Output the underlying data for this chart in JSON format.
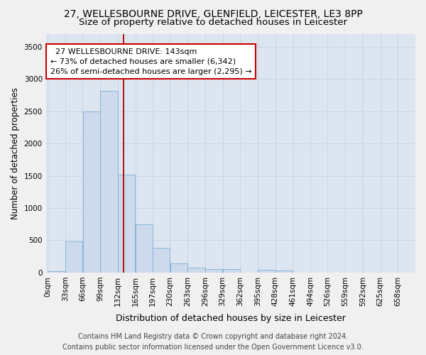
{
  "title_line1": "27, WELLESBOURNE DRIVE, GLENFIELD, LEICESTER, LE3 8PP",
  "title_line2": "Size of property relative to detached houses in Leicester",
  "xlabel": "Distribution of detached houses by size in Leicester",
  "ylabel": "Number of detached properties",
  "bin_labels": [
    "0sqm",
    "33sqm",
    "66sqm",
    "99sqm",
    "132sqm",
    "165sqm",
    "197sqm",
    "230sqm",
    "263sqm",
    "296sqm",
    "329sqm",
    "362sqm",
    "395sqm",
    "428sqm",
    "461sqm",
    "494sqm",
    "526sqm",
    "559sqm",
    "592sqm",
    "625sqm",
    "658sqm"
  ],
  "bin_left_edges": [
    0,
    33,
    66,
    99,
    132,
    165,
    197,
    230,
    263,
    296,
    329,
    362,
    395,
    428,
    461,
    494,
    526,
    559,
    592,
    625,
    658
  ],
  "bin_width": 33,
  "bar_values": [
    20,
    480,
    2500,
    2820,
    1520,
    750,
    380,
    145,
    75,
    55,
    50,
    0,
    40,
    35,
    0,
    0,
    0,
    0,
    0,
    0
  ],
  "bar_color": "#ccdaec",
  "bar_edge_color": "#7aafd4",
  "property_size": 143,
  "red_line_color": "#aa0000",
  "annotation_line1": "  27 WELLESBOURNE DRIVE: 143sqm",
  "annotation_line2": "← 73% of detached houses are smaller (6,342)",
  "annotation_line3": "26% of semi-detached houses are larger (2,295) →",
  "annotation_box_facecolor": "#ffffff",
  "annotation_box_edgecolor": "#cc0000",
  "ylim_max": 3700,
  "yticks": [
    0,
    500,
    1000,
    1500,
    2000,
    2500,
    3000,
    3500
  ],
  "grid_color": "#c8d4e8",
  "plot_bg_color": "#dde6f0",
  "fig_bg_color": "#f0f0f0",
  "title1_fontsize": 10,
  "title2_fontsize": 9.5,
  "xlabel_fontsize": 9,
  "ylabel_fontsize": 8.5,
  "tick_fontsize": 7.5,
  "annot_fontsize": 8,
  "footer_fontsize": 7,
  "footer_line1": "Contains HM Land Registry data © Crown copyright and database right 2024.",
  "footer_line2": "Contains public sector information licensed under the Open Government Licence v3.0."
}
